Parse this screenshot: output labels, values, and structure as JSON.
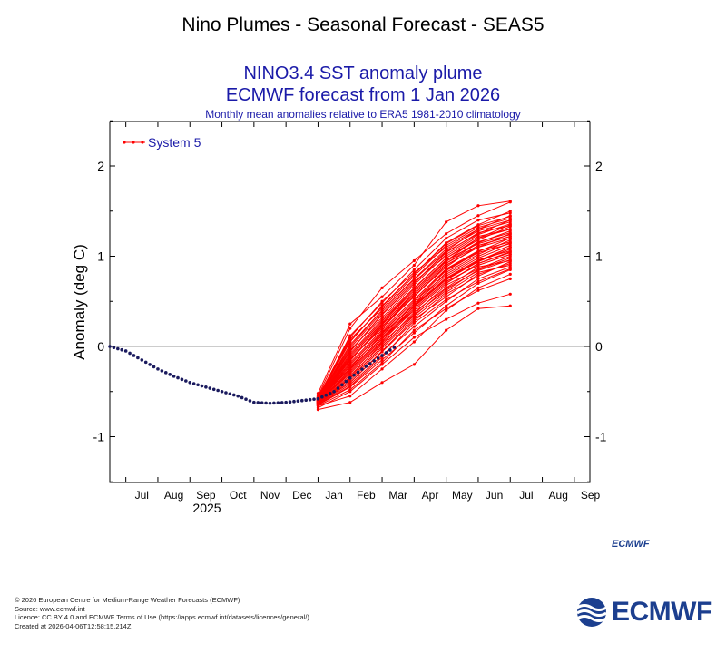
{
  "page_title": "Nino Plumes - Seasonal Forecast - SEAS5",
  "chart_data": {
    "type": "line",
    "title": "NINO3.4 SST anomaly plume",
    "subtitle": "ECMWF forecast from 1 Jan 2026",
    "subtitle2": "Monthly mean anomalies relative to ERA5 1981-2010 climatology",
    "ylabel": "Anomaly (deg C)",
    "xlabel": "",
    "x_ticks": [
      "Jul",
      "Aug",
      "Sep",
      "Oct",
      "Nov",
      "Dec",
      "Jan",
      "Feb",
      "Mar",
      "Apr",
      "May",
      "Jun",
      "Jul",
      "Aug",
      "Sep"
    ],
    "year_label": "2025",
    "y_ticks": [
      "2",
      "1",
      "0",
      "-1"
    ],
    "ylim": [
      -1.5,
      2.5
    ],
    "grid": false,
    "legend": {
      "placement": "top-left",
      "entries": [
        "System 5"
      ]
    },
    "observed_color": "#1a1a5e",
    "forecast_color": "#ff0000",
    "legend_color": "#1a1aa8",
    "observed": {
      "months_from_jun_2025": [
        0,
        0.5,
        1,
        1.5,
        2,
        2.5,
        3,
        3.5,
        4,
        4.5,
        5,
        5.5,
        6,
        6.5,
        7,
        7.5,
        8,
        8.5,
        9
      ],
      "values": [
        0.0,
        -0.05,
        -0.15,
        -0.25,
        -0.33,
        -0.4,
        -0.45,
        -0.5,
        -0.55,
        -0.62,
        -0.63,
        -0.62,
        -0.6,
        -0.58,
        -0.5,
        -0.35,
        -0.22,
        -0.1,
        0.02
      ]
    },
    "ensemble": {
      "months_from_jun_2025": [
        6.5,
        7.5,
        8.5,
        9.5,
        10.5,
        11.5,
        12.5
      ],
      "members": [
        [
          -0.62,
          -0.3,
          0.05,
          0.45,
          0.75,
          0.95,
          1.1
        ],
        [
          -0.55,
          0.2,
          0.65,
          0.95,
          1.25,
          1.45,
          1.6
        ],
        [
          -0.7,
          -0.62,
          -0.4,
          -0.2,
          0.18,
          0.42,
          0.45
        ],
        [
          -0.65,
          -0.45,
          -0.15,
          0.15,
          0.45,
          0.7,
          0.85
        ],
        [
          -0.6,
          -0.05,
          0.35,
          0.7,
          1.05,
          1.25,
          1.4
        ],
        [
          -0.58,
          -0.25,
          0.1,
          0.4,
          0.7,
          0.92,
          1.05
        ],
        [
          -0.66,
          -0.55,
          -0.25,
          0.05,
          0.4,
          0.65,
          0.8
        ],
        [
          -0.52,
          0.25,
          0.55,
          0.9,
          1.38,
          1.56,
          1.61
        ],
        [
          -0.63,
          -0.35,
          0.0,
          0.35,
          0.62,
          0.85,
          0.98
        ],
        [
          -0.59,
          -0.15,
          0.22,
          0.55,
          0.9,
          1.1,
          1.25
        ],
        [
          -0.61,
          -0.2,
          0.15,
          0.5,
          0.8,
          1.0,
          1.15
        ],
        [
          -0.57,
          0.05,
          0.45,
          0.8,
          1.15,
          1.35,
          1.5
        ],
        [
          -0.68,
          -0.5,
          -0.2,
          0.1,
          0.3,
          0.48,
          0.58
        ],
        [
          -0.6,
          -0.1,
          0.28,
          0.62,
          0.95,
          1.2,
          1.35
        ],
        [
          -0.64,
          -0.4,
          -0.05,
          0.3,
          0.55,
          0.8,
          0.92
        ],
        [
          -0.56,
          0.1,
          0.5,
          0.82,
          1.1,
          1.3,
          1.45
        ],
        [
          -0.62,
          -0.28,
          0.08,
          0.42,
          0.72,
          0.9,
          1.02
        ],
        [
          -0.58,
          -0.02,
          0.38,
          0.72,
          1.0,
          1.22,
          1.3
        ],
        [
          -0.65,
          -0.42,
          -0.1,
          0.22,
          0.5,
          0.75,
          0.88
        ],
        [
          -0.6,
          -0.18,
          0.18,
          0.52,
          0.85,
          1.05,
          1.2
        ],
        [
          -0.59,
          -0.12,
          0.25,
          0.58,
          0.92,
          1.15,
          1.28
        ],
        [
          -0.63,
          -0.32,
          0.02,
          0.38,
          0.65,
          0.88,
          0.95
        ],
        [
          -0.57,
          0.12,
          0.48,
          0.85,
          1.2,
          1.4,
          1.48
        ],
        [
          -0.61,
          -0.22,
          0.12,
          0.48,
          0.78,
          0.98,
          1.12
        ],
        [
          -0.6,
          -0.08,
          0.3,
          0.65,
          0.98,
          1.18,
          1.33
        ],
        [
          -0.66,
          -0.48,
          -0.18,
          0.18,
          0.42,
          0.62,
          0.75
        ],
        [
          -0.58,
          0.0,
          0.4,
          0.75,
          1.08,
          1.28,
          1.38
        ],
        [
          -0.62,
          -0.26,
          0.1,
          0.44,
          0.74,
          0.94,
          1.08
        ],
        [
          -0.59,
          -0.14,
          0.2,
          0.56,
          0.88,
          1.12,
          1.22
        ],
        [
          -0.64,
          -0.38,
          -0.02,
          0.32,
          0.6,
          0.82,
          0.9
        ],
        [
          -0.6,
          -0.16,
          0.24,
          0.6,
          0.94,
          1.16,
          1.26
        ],
        [
          -0.57,
          0.08,
          0.42,
          0.78,
          1.12,
          1.32,
          1.42
        ],
        [
          -0.63,
          -0.34,
          0.04,
          0.36,
          0.68,
          0.86,
          1.0
        ],
        [
          -0.61,
          -0.24,
          0.14,
          0.46,
          0.82,
          1.02,
          1.18
        ],
        [
          -0.58,
          -0.04,
          0.32,
          0.68,
          1.02,
          1.24,
          1.36
        ],
        [
          -0.65,
          -0.44,
          -0.12,
          0.26,
          0.52,
          0.72,
          0.86
        ],
        [
          -0.6,
          -0.12,
          0.26,
          0.62,
          0.96,
          1.14,
          1.24
        ],
        [
          -0.62,
          -0.3,
          0.06,
          0.4,
          0.7,
          0.92,
          1.04
        ],
        [
          -0.59,
          -0.06,
          0.36,
          0.7,
          1.04,
          1.26,
          1.34
        ],
        [
          -0.61,
          -0.2,
          0.16,
          0.5,
          0.84,
          1.04,
          1.14
        ],
        [
          -0.64,
          -0.36,
          0.0,
          0.34,
          0.64,
          0.84,
          0.96
        ],
        [
          -0.58,
          0.02,
          0.4,
          0.74,
          1.06,
          1.3,
          1.4
        ],
        [
          -0.62,
          -0.22,
          0.12,
          0.46,
          0.76,
          0.96,
          1.06
        ],
        [
          -0.6,
          -0.1,
          0.28,
          0.64,
          0.98,
          1.2,
          1.3
        ],
        [
          -0.63,
          -0.28,
          0.08,
          0.42,
          0.72,
          0.9,
          1.02
        ],
        [
          -0.59,
          -0.14,
          0.22,
          0.56,
          0.9,
          1.1,
          1.2
        ],
        [
          -0.61,
          -0.18,
          0.18,
          0.52,
          0.86,
          1.06,
          1.16
        ],
        [
          -0.57,
          0.06,
          0.44,
          0.8,
          1.14,
          1.34,
          1.44
        ],
        [
          -0.64,
          -0.4,
          -0.06,
          0.28,
          0.58,
          0.78,
          0.94
        ],
        [
          -0.6,
          -0.14,
          0.22,
          0.58,
          0.92,
          1.12,
          1.22
        ],
        [
          -0.62,
          -0.26,
          0.1,
          0.44,
          0.74,
          0.94,
          1.1
        ]
      ]
    }
  },
  "logo_small": "ECMWF",
  "logo_big": "ECMWF",
  "credits": [
    "© 2026 European Centre for Medium-Range Weather Forecasts (ECMWF)",
    "Source: www.ecmwf.int",
    "Licence: CC BY 4.0 and ECMWF Terms of Use (https://apps.ecmwf.int/datasets/licences/general/)",
    "Created at 2026-04-06T12:58:15.214Z"
  ],
  "brand_color": "#1c3f8f"
}
